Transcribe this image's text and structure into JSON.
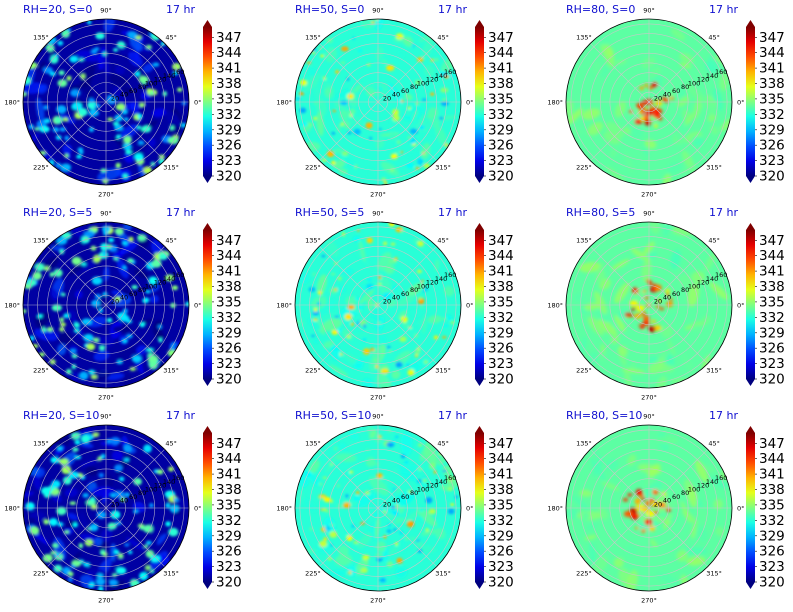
{
  "figure": {
    "time_label": "17 hr",
    "colorbar": {
      "colormap": "jet",
      "ticks": [
        "320",
        "323",
        "326",
        "329",
        "332",
        "335",
        "338",
        "341",
        "344",
        "347"
      ],
      "min": 320,
      "max": 349,
      "extend": "both"
    },
    "angle_labels": [
      "0°",
      "45°",
      "90°",
      "135°",
      "180°",
      "225°",
      "270°",
      "315°"
    ],
    "radial_labels": [
      "20",
      "40",
      "60",
      "80",
      "100",
      "120",
      "140",
      "160"
    ]
  },
  "panels": [
    {
      "title": "RH=20, S=0"
    },
    {
      "title": "RH=50, S=0"
    },
    {
      "title": "RH=80, S=0"
    },
    {
      "title": "RH=20, S=5"
    },
    {
      "title": "RH=50, S=5"
    },
    {
      "title": "RH=80, S=5"
    },
    {
      "title": "RH=20, S=10"
    },
    {
      "title": "RH=50, S=10"
    },
    {
      "title": "RH=80, S=10"
    }
  ],
  "chart_data": {
    "type": "heatmap",
    "projection": "polar",
    "layout": "3x3 grid, rows S = 0, 5, 10; columns RH = 20, 50, 80",
    "rlim": [
      0,
      170
    ],
    "value_range": [
      320,
      349
    ],
    "background_value": {
      "RH=20": 321,
      "RH=50": 332,
      "RH=80": 333.5
    },
    "grid": true
  }
}
